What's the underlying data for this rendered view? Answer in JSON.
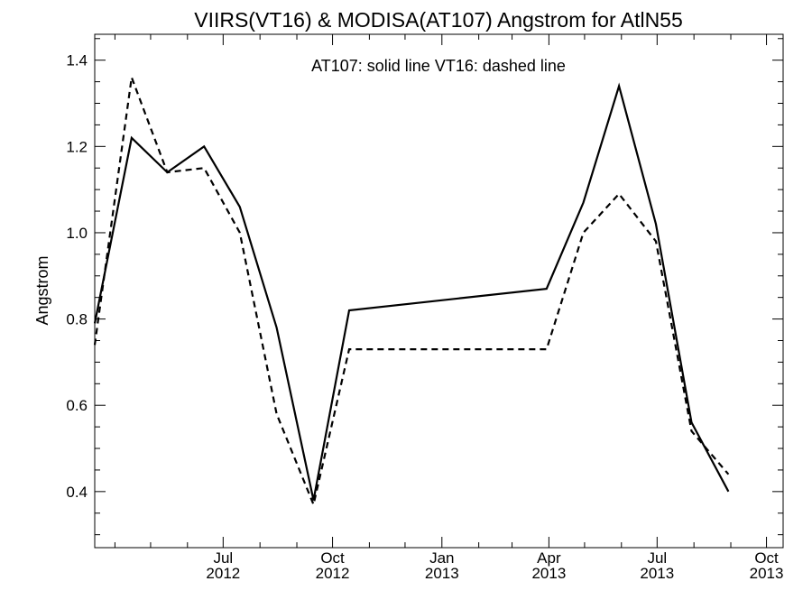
{
  "chart_data": {
    "type": "line",
    "title": "VIIRS(VT16) & MODISA(AT107)  Angstrom for AtlN55",
    "annotation": "AT107: solid line   VT16: dashed line",
    "xlabel": "",
    "ylabel": "Angstrom",
    "xlim": [
      "2012-03-15",
      "2013-10-15"
    ],
    "ylim": [
      0.27,
      1.46
    ],
    "yticks": [
      0.4,
      0.6,
      0.8,
      1.0,
      1.2,
      1.4
    ],
    "ytick_labels": [
      "0.4",
      "0.6",
      "0.8",
      "1.0",
      "1.2",
      "1.4"
    ],
    "xticks": [
      {
        "date": "2012-07-01",
        "line1": "Jul",
        "line2": "2012"
      },
      {
        "date": "2012-10-01",
        "line1": "Oct",
        "line2": "2012"
      },
      {
        "date": "2013-01-01",
        "line1": "Jan",
        "line2": "2013"
      },
      {
        "date": "2013-04-01",
        "line1": "Apr",
        "line2": "2013"
      },
      {
        "date": "2013-07-01",
        "line1": "Jul",
        "line2": "2013"
      },
      {
        "date": "2013-10-01",
        "line1": "Oct",
        "line2": "2013"
      }
    ],
    "grid": false,
    "series": [
      {
        "name": "AT107",
        "style": "solid",
        "color": "#000000",
        "x": [
          "2012-03-15",
          "2012-04-15",
          "2012-05-15",
          "2012-06-15",
          "2012-07-15",
          "2012-08-15",
          "2012-09-15",
          "2012-10-15",
          "2013-03-30",
          "2013-04-30",
          "2013-05-30",
          "2013-06-30",
          "2013-07-30",
          "2013-08-30",
          "2013-09-30",
          "2013-10-15"
        ],
        "values": [
          0.79,
          1.22,
          1.14,
          1.2,
          1.06,
          0.78,
          0.38,
          0.82,
          0.87,
          1.07,
          1.34,
          1.02,
          0.56,
          0.4,
          null,
          null
        ]
      },
      {
        "name": "VT16",
        "style": "dashed",
        "color": "#000000",
        "x": [
          "2012-03-15",
          "2012-04-15",
          "2012-05-15",
          "2012-06-15",
          "2012-07-15",
          "2012-08-15",
          "2012-09-15",
          "2012-10-15",
          "2013-03-30",
          "2013-04-30",
          "2013-05-30",
          "2013-06-30",
          "2013-07-30",
          "2013-08-30",
          "2013-09-30",
          "2013-10-15"
        ],
        "values": [
          0.74,
          1.36,
          1.14,
          1.15,
          1.0,
          0.58,
          0.37,
          0.73,
          0.73,
          1.0,
          1.09,
          0.98,
          0.54,
          0.44,
          null,
          null
        ]
      }
    ]
  }
}
